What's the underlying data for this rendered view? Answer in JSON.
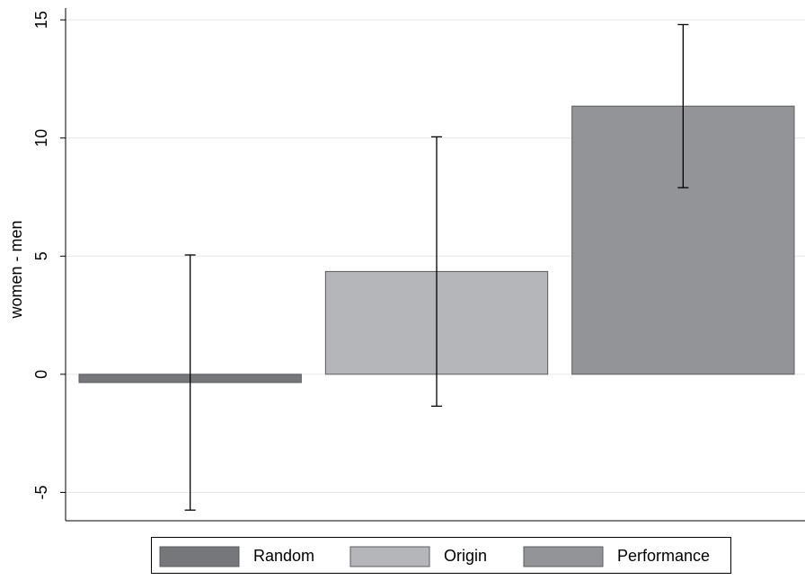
{
  "chart_data": {
    "type": "bar",
    "ylabel": "women - men",
    "ylim": [
      -6.2,
      15.5
    ],
    "yticks": [
      -5,
      0,
      5,
      10,
      15
    ],
    "grid": true,
    "legend": "bottom",
    "series": [
      {
        "name": "Random",
        "color": "#76777b",
        "values": [
          -0.35
        ],
        "errors": [
          5.4
        ]
      },
      {
        "name": "Origin",
        "color": "#b5b6b9",
        "values": [
          4.35
        ],
        "errors": [
          5.7
        ]
      },
      {
        "name": "Performance",
        "color": "#939498",
        "values": [
          11.35
        ],
        "errors": [
          3.45
        ]
      }
    ]
  }
}
